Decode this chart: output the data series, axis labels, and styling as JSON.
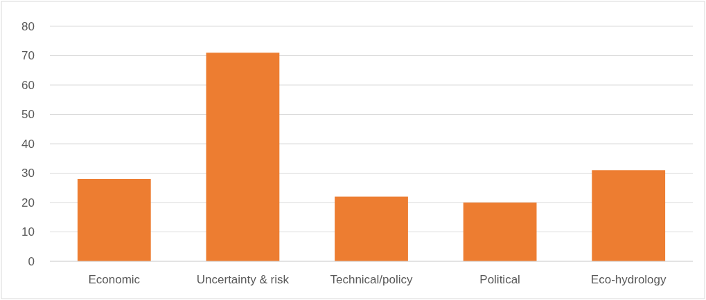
{
  "chart_data": {
    "type": "bar",
    "categories": [
      "Economic",
      "Uncertainty & risk",
      "Technical/policy",
      "Political",
      "Eco-hydrology"
    ],
    "values": [
      28,
      71,
      22,
      20,
      31
    ],
    "color": "#ed7d31",
    "ylim": [
      0,
      80
    ],
    "yticks": [
      0,
      10,
      20,
      30,
      40,
      50,
      60,
      70,
      80
    ],
    "grid": "y"
  }
}
